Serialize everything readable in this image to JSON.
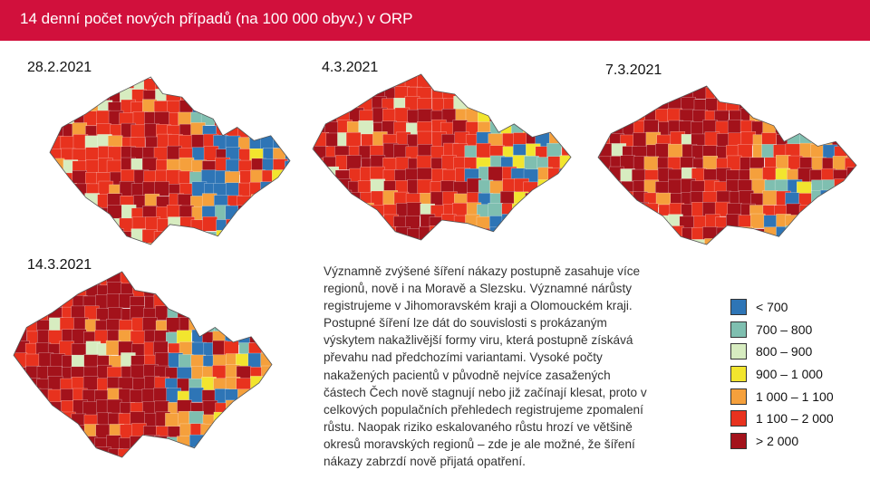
{
  "header": {
    "title": "14 denní počet nových případů (na 100 000 obyv.) v ORP"
  },
  "maps": [
    {
      "date": "28.2.2021"
    },
    {
      "date": "4.3.2021"
    },
    {
      "date": "7.3.2021"
    },
    {
      "date": "14.3.2021"
    }
  ],
  "text": {
    "lines": [
      "Významně zvýšené šíření nákazy postupně zasahuje více",
      "regionů, nově i na Moravě a Slezsku. Významné nárůsty",
      "registrujeme v Jihomoravském kraji a Olomouckém kraji.",
      "Postupné šíření lze dát do souvislosti s prokázaným",
      "výskytem nakažlivější formy viru, která postupně získává",
      "převahu nad předchozími variantami. Vysoké počty",
      "nakažených pacientů v původně nejvíce zasažených",
      "částech Čech nově stagnují nebo již začínají klesat, proto v",
      "celkových populačních přehledech registrujeme zpomalení",
      "růstu. Naopak riziko eskalovaného růstu hrozí ve většině",
      "okresů moravských regionů – zde je ale možné, že šíření",
      "nákazy zabrzdí nově přijatá opatření."
    ]
  },
  "legend": [
    {
      "label": "< 700",
      "color": "#2e75b6"
    },
    {
      "label": "700 – 800",
      "color": "#7fbfb0"
    },
    {
      "label": "800 – 900",
      "color": "#d7ecc0"
    },
    {
      "label": "900 – 1 000",
      "color": "#f2e52e"
    },
    {
      "label": "1 000 – 1 100",
      "color": "#f5a03c"
    },
    {
      "label": "1 100 – 2 000",
      "color": "#e8321e"
    },
    {
      "label": "> 2 000",
      "color": "#a3121b"
    }
  ]
}
